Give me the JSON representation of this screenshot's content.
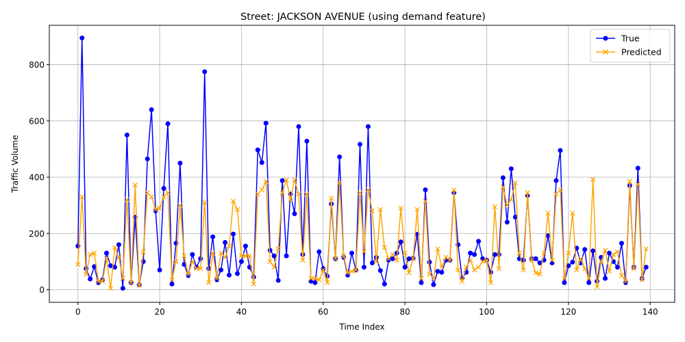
{
  "chart_data": {
    "type": "line",
    "title": "Street: JACKSON AVENUE (using demand feature)",
    "xlabel": "Time Index",
    "ylabel": "Traffic Volume",
    "xlim": [
      -7,
      146
    ],
    "ylim": [
      -45,
      940
    ],
    "xticks": [
      0,
      20,
      40,
      60,
      80,
      100,
      120,
      140
    ],
    "yticks": [
      0,
      200,
      400,
      600,
      800
    ],
    "grid": true,
    "legend_position": "top-right",
    "series": [
      {
        "name": "True",
        "color": "#0000ff",
        "marker": "circle",
        "values": [
          155,
          895,
          75,
          38,
          82,
          25,
          35,
          130,
          85,
          80,
          160,
          5,
          550,
          25,
          258,
          18,
          100,
          465,
          640,
          280,
          70,
          360,
          590,
          20,
          165,
          450,
          90,
          50,
          125,
          80,
          110,
          775,
          75,
          188,
          35,
          70,
          168,
          52,
          198,
          57,
          100,
          155,
          80,
          45,
          497,
          452,
          592,
          140,
          120,
          33,
          388,
          120,
          340,
          270,
          580,
          125,
          528,
          30,
          25,
          135,
          75,
          48,
          305,
          110,
          472,
          115,
          52,
          130,
          70,
          517,
          80,
          580,
          95,
          115,
          68,
          20,
          105,
          110,
          130,
          170,
          80,
          110,
          112,
          197,
          25,
          355,
          98,
          18,
          65,
          62,
          105,
          105,
          345,
          160,
          40,
          62,
          130,
          125,
          172,
          110,
          105,
          62,
          125,
          125,
          398,
          240,
          430,
          258,
          110,
          105,
          335,
          110,
          110,
          95,
          105,
          192,
          95,
          388,
          495,
          25,
          85,
          98,
          148,
          95,
          143,
          25,
          138,
          30,
          115,
          40,
          130,
          100,
          80,
          165,
          25,
          370,
          80,
          432,
          40,
          80
        ]
      },
      {
        "name": "Predicted",
        "color": "#ffa500",
        "marker": "x",
        "values": [
          90,
          330,
          55,
          125,
          130,
          30,
          30,
          110,
          5,
          150,
          115,
          40,
          320,
          25,
          372,
          15,
          135,
          345,
          330,
          285,
          290,
          330,
          345,
          35,
          100,
          300,
          120,
          55,
          100,
          75,
          75,
          310,
          25,
          130,
          40,
          130,
          115,
          155,
          315,
          285,
          120,
          120,
          120,
          20,
          340,
          355,
          385,
          100,
          80,
          145,
          345,
          390,
          320,
          390,
          340,
          105,
          340,
          40,
          40,
          35,
          70,
          25,
          325,
          110,
          380,
          120,
          60,
          65,
          70,
          345,
          135,
          355,
          280,
          100,
          285,
          150,
          110,
          125,
          105,
          290,
          130,
          60,
          110,
          285,
          40,
          315,
          55,
          40,
          145,
          80,
          115,
          105,
          355,
          70,
          30,
          80,
          105,
          70,
          80,
          100,
          105,
          25,
          295,
          75,
          365,
          300,
          320,
          380,
          130,
          70,
          345,
          105,
          60,
          55,
          130,
          272,
          105,
          340,
          355,
          40,
          130,
          272,
          70,
          110,
          75,
          40,
          392,
          10,
          100,
          140,
          65,
          125,
          135,
          50,
          30,
          385,
          75,
          375,
          35,
          145
        ]
      }
    ]
  }
}
